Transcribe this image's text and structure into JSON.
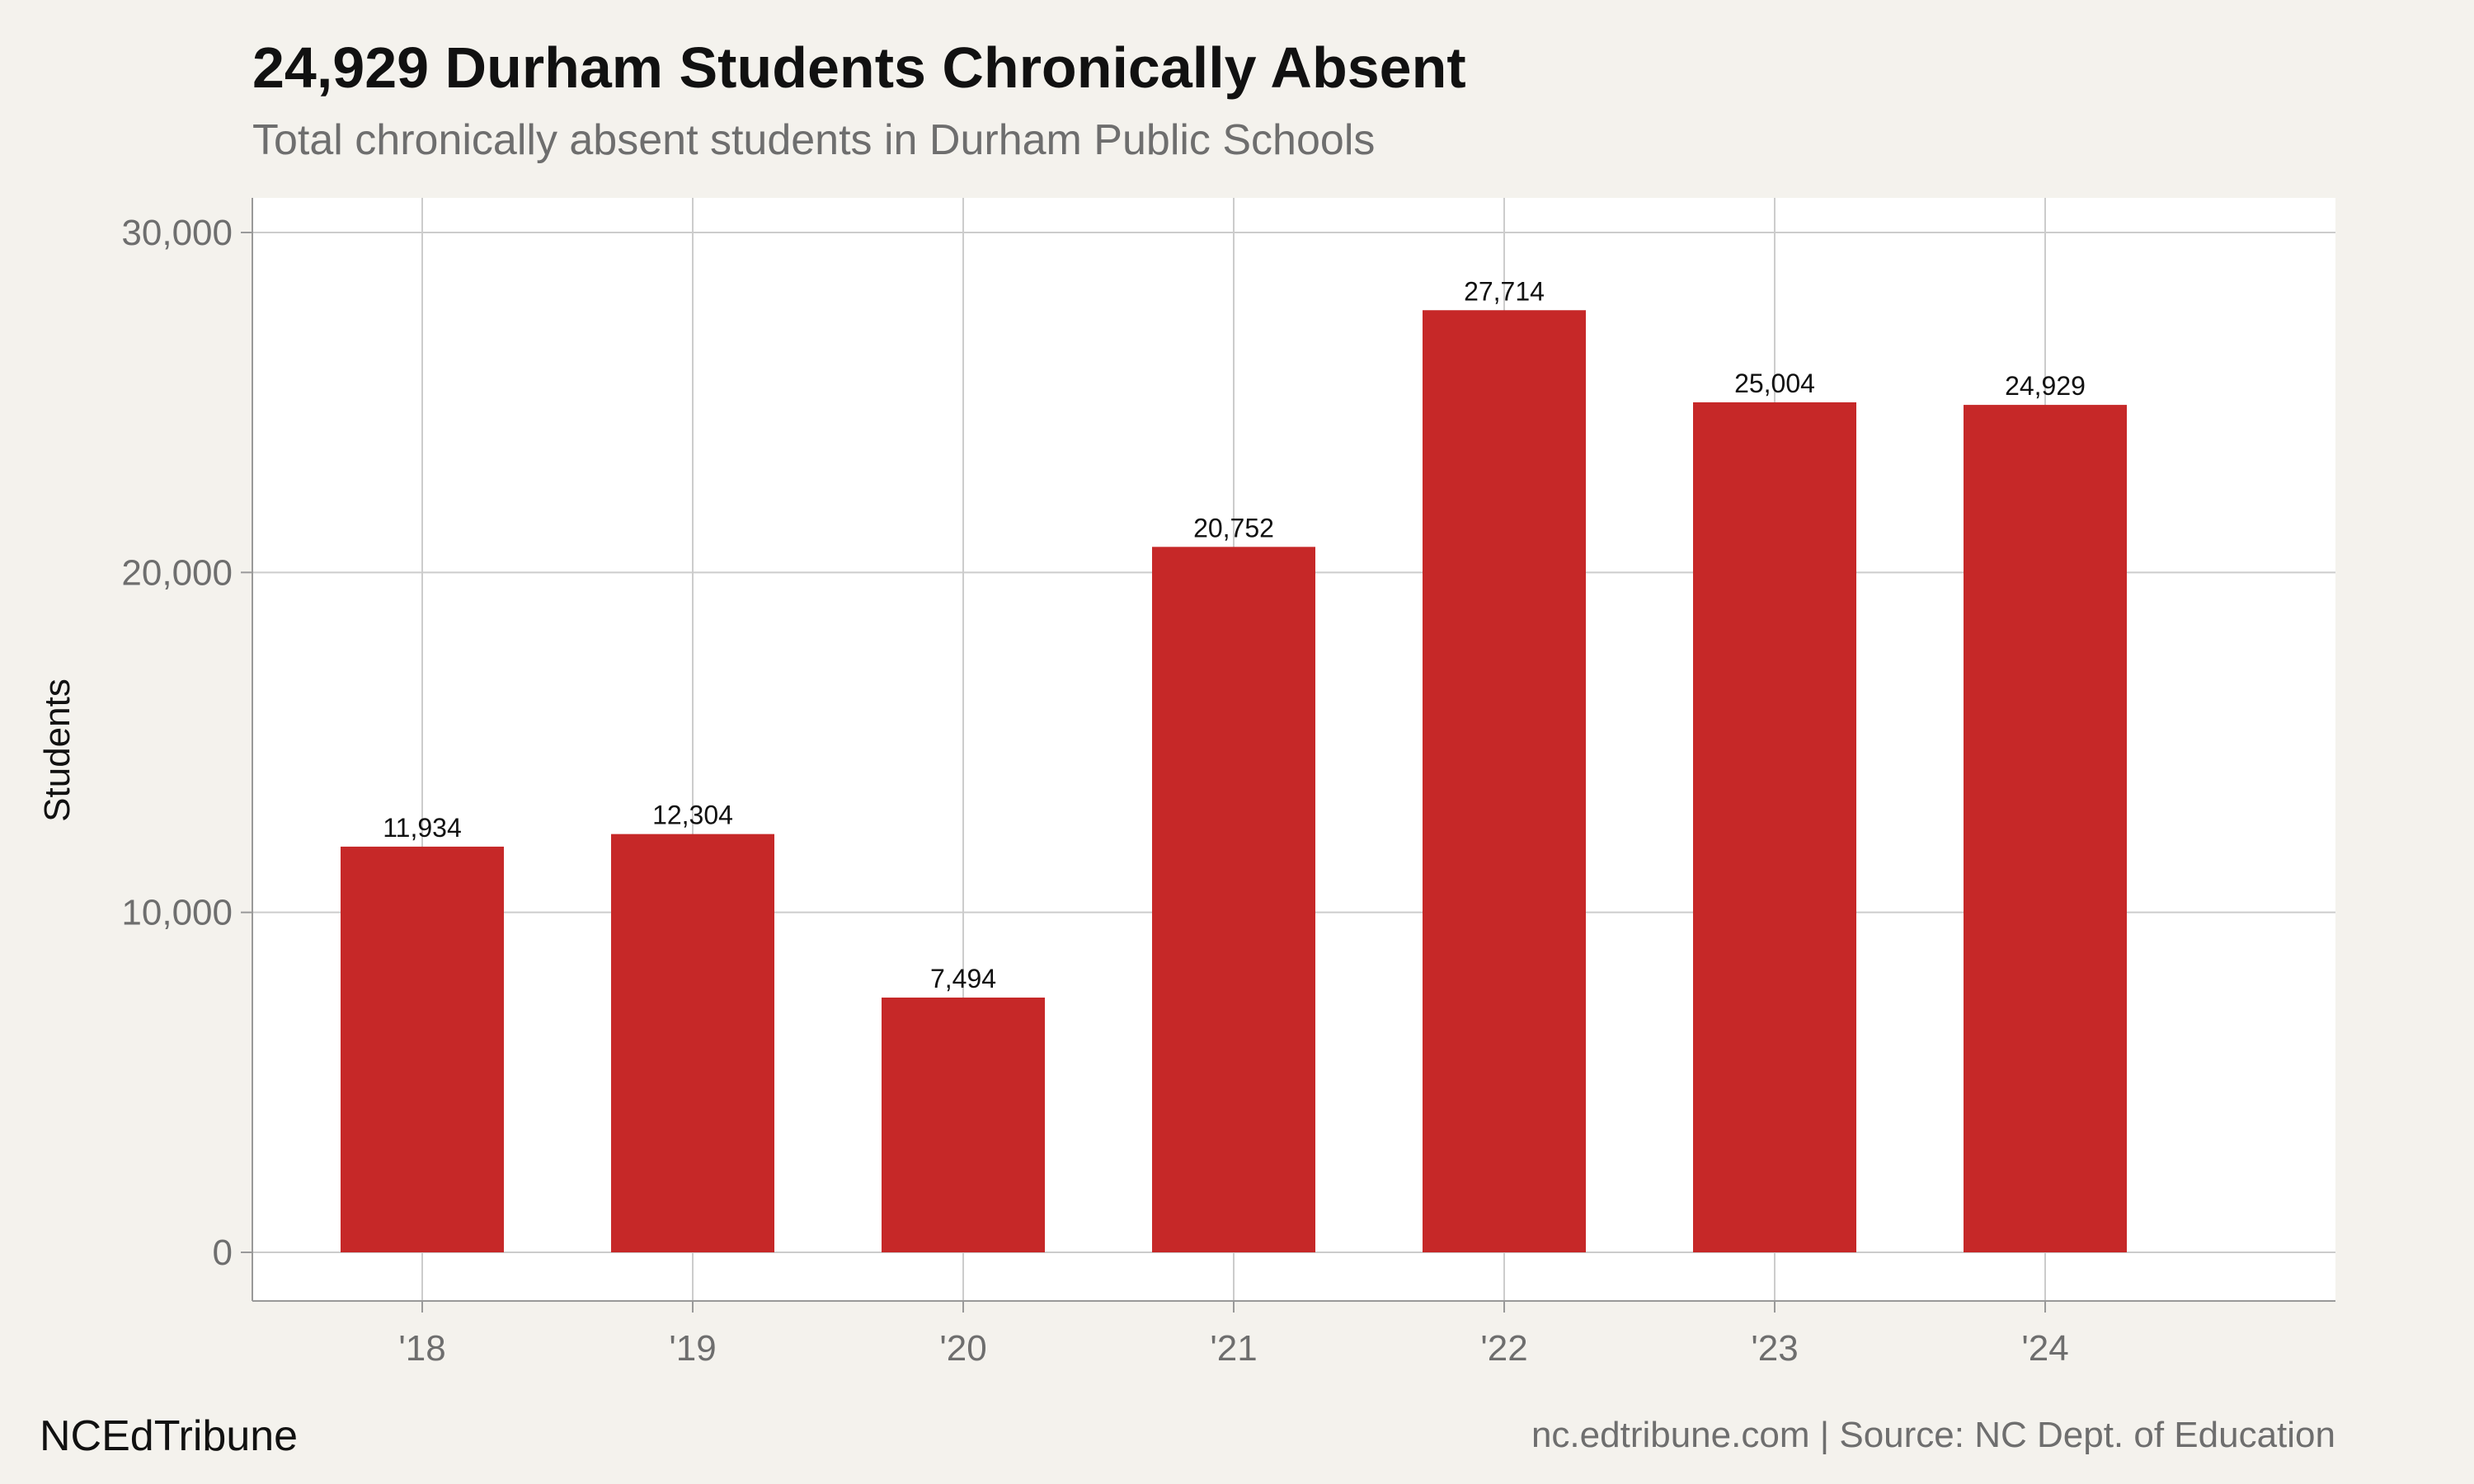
{
  "chart_data": {
    "type": "bar",
    "title": "24,929 Durham Students Chronically Absent",
    "subtitle": "Total chronically absent students in Durham Public Schools",
    "categories": [
      "'18",
      "'19",
      "'20",
      "'21",
      "'22",
      "'23",
      "'24"
    ],
    "values": [
      11934,
      12304,
      7494,
      20752,
      27714,
      25004,
      24929
    ],
    "value_labels": [
      "11,934",
      "12,304",
      "7,494",
      "20,752",
      "27,714",
      "25,004",
      "24,929"
    ],
    "xlabel": "",
    "ylabel": "Students",
    "ylim": [
      0,
      30000
    ],
    "yticks": [
      0,
      10000,
      20000,
      30000
    ],
    "ytick_labels": [
      "0",
      "10,000",
      "20,000",
      "30,000"
    ],
    "grid": true,
    "legend": "none",
    "colors": {
      "bar": "#c62828",
      "plot_background": "#ffffff",
      "page_background": "#f4f2ed",
      "grid": "#cccccc"
    }
  },
  "footer": {
    "brand": "NCEdTribune",
    "source": "nc.edtribune.com | Source: NC Dept. of Education"
  }
}
